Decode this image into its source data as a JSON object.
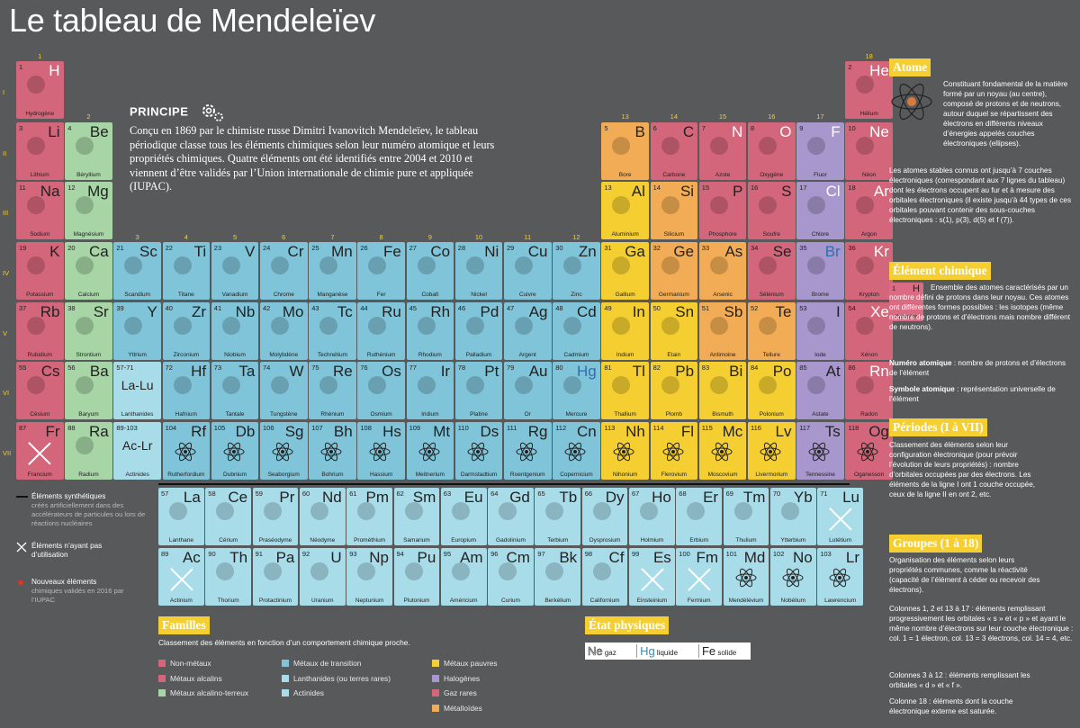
{
  "title": "Le tableau de Mendeleïev",
  "principe": {
    "title": "PRINCIPE",
    "text": "Conçu en 1869 par le chimiste russe Dimitri Ivanovitch Mendeleïev, le tableau périodique classe tous les éléments chimiques selon leur numéro atomique et leurs propriétés chimiques. Quatre éléments ont été identifiés entre 2004 et 2010 et viennent d’être validés par l’Union internationale de chimie pure et appliquée (IUPAC)."
  },
  "periods": [
    "I",
    "II",
    "III",
    "IV",
    "V",
    "VI",
    "VII"
  ],
  "groups": [
    "1",
    "2",
    "3",
    "4",
    "5",
    "6",
    "7",
    "8",
    "9",
    "10",
    "11",
    "12",
    "13",
    "14",
    "15",
    "16",
    "17",
    "18"
  ],
  "elements": [
    {
      "n": "1",
      "s": "H",
      "name": "Hydrogène",
      "c": "c-nonmetal",
      "col": 0,
      "row": 0
    },
    {
      "n": "2",
      "s": "He",
      "name": "Hélium",
      "c": "c-noble",
      "col": 17,
      "row": 0
    },
    {
      "n": "3",
      "s": "Li",
      "name": "Lithium",
      "c": "c-alkali",
      "col": 0,
      "row": 1
    },
    {
      "n": "4",
      "s": "Be",
      "name": "Béryllium",
      "c": "c-alkaline",
      "col": 1,
      "row": 1
    },
    {
      "n": "5",
      "s": "B",
      "name": "Bore",
      "c": "c-metalloid",
      "col": 12,
      "row": 1
    },
    {
      "n": "6",
      "s": "C",
      "name": "Carbone",
      "c": "c-nonmetal",
      "col": 13,
      "row": 1
    },
    {
      "n": "7",
      "s": "N",
      "name": "Azote",
      "c": "c-nonmetal",
      "col": 14,
      "row": 1
    },
    {
      "n": "8",
      "s": "O",
      "name": "Oxygène",
      "c": "c-nonmetal",
      "col": 15,
      "row": 1
    },
    {
      "n": "9",
      "s": "F",
      "name": "Fluor",
      "c": "c-halogen",
      "col": 16,
      "row": 1
    },
    {
      "n": "10",
      "s": "Ne",
      "name": "Néon",
      "c": "c-noble",
      "col": 17,
      "row": 1
    },
    {
      "n": "11",
      "s": "Na",
      "name": "Sodium",
      "c": "c-alkali",
      "col": 0,
      "row": 2
    },
    {
      "n": "12",
      "s": "Mg",
      "name": "Magnésium",
      "c": "c-alkaline",
      "col": 1,
      "row": 2
    },
    {
      "n": "13",
      "s": "Al",
      "name": "Aluminium",
      "c": "c-poor",
      "col": 12,
      "row": 2
    },
    {
      "n": "14",
      "s": "Si",
      "name": "Silicium",
      "c": "c-metalloid",
      "col": 13,
      "row": 2
    },
    {
      "n": "15",
      "s": "P",
      "name": "Phosphore",
      "c": "c-nonmetal",
      "col": 14,
      "row": 2
    },
    {
      "n": "16",
      "s": "S",
      "name": "Soufre",
      "c": "c-nonmetal",
      "col": 15,
      "row": 2
    },
    {
      "n": "17",
      "s": "Cl",
      "name": "Chlore",
      "c": "c-halogen",
      "col": 16,
      "row": 2
    },
    {
      "n": "18",
      "s": "Ar",
      "name": "Argon",
      "c": "c-noble",
      "col": 17,
      "row": 2
    },
    {
      "n": "19",
      "s": "K",
      "name": "Potassium",
      "c": "c-alkali",
      "col": 0,
      "row": 3
    },
    {
      "n": "20",
      "s": "Ca",
      "name": "Calcium",
      "c": "c-alkaline",
      "col": 1,
      "row": 3
    },
    {
      "n": "21",
      "s": "Sc",
      "name": "Scandium",
      "c": "c-trans",
      "col": 2,
      "row": 3
    },
    {
      "n": "22",
      "s": "Ti",
      "name": "Titane",
      "c": "c-trans",
      "col": 3,
      "row": 3
    },
    {
      "n": "23",
      "s": "V",
      "name": "Vanadium",
      "c": "c-trans",
      "col": 4,
      "row": 3
    },
    {
      "n": "24",
      "s": "Cr",
      "name": "Chrome",
      "c": "c-trans",
      "col": 5,
      "row": 3
    },
    {
      "n": "25",
      "s": "Mn",
      "name": "Manganèse",
      "c": "c-trans",
      "col": 6,
      "row": 3
    },
    {
      "n": "26",
      "s": "Fe",
      "name": "Fer",
      "c": "c-trans",
      "col": 7,
      "row": 3
    },
    {
      "n": "27",
      "s": "Co",
      "name": "Cobalt",
      "c": "c-trans",
      "col": 8,
      "row": 3
    },
    {
      "n": "28",
      "s": "Ni",
      "name": "Nickel",
      "c": "c-trans",
      "col": 9,
      "row": 3
    },
    {
      "n": "29",
      "s": "Cu",
      "name": "Cuivre",
      "c": "c-trans",
      "col": 10,
      "row": 3
    },
    {
      "n": "30",
      "s": "Zn",
      "name": "Zinc",
      "c": "c-trans",
      "col": 11,
      "row": 3
    },
    {
      "n": "31",
      "s": "Ga",
      "name": "Gallium",
      "c": "c-poor",
      "col": 12,
      "row": 3
    },
    {
      "n": "32",
      "s": "Ge",
      "name": "Germanium",
      "c": "c-metalloid",
      "col": 13,
      "row": 3
    },
    {
      "n": "33",
      "s": "As",
      "name": "Arsenic",
      "c": "c-metalloid",
      "col": 14,
      "row": 3
    },
    {
      "n": "34",
      "s": "Se",
      "name": "Sélénium",
      "c": "c-nonmetal",
      "col": 15,
      "row": 3
    },
    {
      "n": "35",
      "s": "Br",
      "name": "Brome",
      "c": "c-halogen",
      "col": 16,
      "row": 3
    },
    {
      "n": "36",
      "s": "Kr",
      "name": "Krypton",
      "c": "c-noble",
      "col": 17,
      "row": 3
    },
    {
      "n": "37",
      "s": "Rb",
      "name": "Rubidium",
      "c": "c-alkali",
      "col": 0,
      "row": 4
    },
    {
      "n": "38",
      "s": "Sr",
      "name": "Strontium",
      "c": "c-alkaline",
      "col": 1,
      "row": 4
    },
    {
      "n": "39",
      "s": "Y",
      "name": "Yttrium",
      "c": "c-trans",
      "col": 2,
      "row": 4
    },
    {
      "n": "40",
      "s": "Zr",
      "name": "Zirconium",
      "c": "c-trans",
      "col": 3,
      "row": 4
    },
    {
      "n": "41",
      "s": "Nb",
      "name": "Niobium",
      "c": "c-trans",
      "col": 4,
      "row": 4
    },
    {
      "n": "42",
      "s": "Mo",
      "name": "Molybdène",
      "c": "c-trans",
      "col": 5,
      "row": 4
    },
    {
      "n": "43",
      "s": "Tc",
      "name": "Technétium",
      "c": "c-trans",
      "col": 6,
      "row": 4
    },
    {
      "n": "44",
      "s": "Ru",
      "name": "Ruthénium",
      "c": "c-trans",
      "col": 7,
      "row": 4
    },
    {
      "n": "45",
      "s": "Rh",
      "name": "Rhodium",
      "c": "c-trans",
      "col": 8,
      "row": 4
    },
    {
      "n": "46",
      "s": "Pd",
      "name": "Palladium",
      "c": "c-trans",
      "col": 9,
      "row": 4
    },
    {
      "n": "47",
      "s": "Ag",
      "name": "Argent",
      "c": "c-trans",
      "col": 10,
      "row": 4
    },
    {
      "n": "48",
      "s": "Cd",
      "name": "Cadmium",
      "c": "c-trans",
      "col": 11,
      "row": 4
    },
    {
      "n": "49",
      "s": "In",
      "name": "Indium",
      "c": "c-poor",
      "col": 12,
      "row": 4
    },
    {
      "n": "50",
      "s": "Sn",
      "name": "Étain",
      "c": "c-poor",
      "col": 13,
      "row": 4
    },
    {
      "n": "51",
      "s": "Sb",
      "name": "Antimoine",
      "c": "c-metalloid",
      "col": 14,
      "row": 4
    },
    {
      "n": "52",
      "s": "Te",
      "name": "Tellure",
      "c": "c-metalloid",
      "col": 15,
      "row": 4
    },
    {
      "n": "53",
      "s": "I",
      "name": "Iode",
      "c": "c-halogen",
      "col": 16,
      "row": 4
    },
    {
      "n": "54",
      "s": "Xe",
      "name": "Xénon",
      "c": "c-noble",
      "col": 17,
      "row": 4
    },
    {
      "n": "55",
      "s": "Cs",
      "name": "Césium",
      "c": "c-alkali",
      "col": 0,
      "row": 5
    },
    {
      "n": "56",
      "s": "Ba",
      "name": "Baryum",
      "c": "c-alkaline",
      "col": 1,
      "row": 5
    },
    {
      "n": "72",
      "s": "Hf",
      "name": "Hafnium",
      "c": "c-trans",
      "col": 3,
      "row": 5
    },
    {
      "n": "73",
      "s": "Ta",
      "name": "Tantale",
      "c": "c-trans",
      "col": 4,
      "row": 5
    },
    {
      "n": "74",
      "s": "W",
      "name": "Tungstène",
      "c": "c-trans",
      "col": 5,
      "row": 5
    },
    {
      "n": "75",
      "s": "Re",
      "name": "Rhénium",
      "c": "c-trans",
      "col": 6,
      "row": 5
    },
    {
      "n": "76",
      "s": "Os",
      "name": "Osmium",
      "c": "c-trans",
      "col": 7,
      "row": 5
    },
    {
      "n": "77",
      "s": "Ir",
      "name": "Iridium",
      "c": "c-trans",
      "col": 8,
      "row": 5
    },
    {
      "n": "78",
      "s": "Pt",
      "name": "Platine",
      "c": "c-trans",
      "col": 9,
      "row": 5
    },
    {
      "n": "79",
      "s": "Au",
      "name": "Or",
      "c": "c-trans",
      "col": 10,
      "row": 5
    },
    {
      "n": "80",
      "s": "Hg",
      "name": "Mercure",
      "c": "c-trans",
      "col": 11,
      "row": 5
    },
    {
      "n": "81",
      "s": "Tl",
      "name": "Thallium",
      "c": "c-poor",
      "col": 12,
      "row": 5
    },
    {
      "n": "82",
      "s": "Pb",
      "name": "Plomb",
      "c": "c-poor",
      "col": 13,
      "row": 5
    },
    {
      "n": "83",
      "s": "Bi",
      "name": "Bismuth",
      "c": "c-poor",
      "col": 14,
      "row": 5
    },
    {
      "n": "84",
      "s": "Po",
      "name": "Polonium",
      "c": "c-poor",
      "col": 15,
      "row": 5
    },
    {
      "n": "85",
      "s": "At",
      "name": "Astate",
      "c": "c-halogen",
      "col": 16,
      "row": 5
    },
    {
      "n": "86",
      "s": "Rn",
      "name": "Radon",
      "c": "c-noble",
      "col": 17,
      "row": 5
    },
    {
      "n": "87",
      "s": "Fr",
      "name": "Francium",
      "c": "c-alkali",
      "col": 0,
      "row": 6,
      "x": true
    },
    {
      "n": "88",
      "s": "Ra",
      "name": "Radium",
      "c": "c-alkaline",
      "col": 1,
      "row": 6
    },
    {
      "n": "104",
      "s": "Rf",
      "name": "Rutherfordium",
      "c": "c-trans",
      "col": 3,
      "row": 6,
      "a": true
    },
    {
      "n": "105",
      "s": "Db",
      "name": "Dubnium",
      "c": "c-trans",
      "col": 4,
      "row": 6,
      "a": true
    },
    {
      "n": "106",
      "s": "Sg",
      "name": "Seaborgium",
      "c": "c-trans",
      "col": 5,
      "row": 6,
      "a": true
    },
    {
      "n": "107",
      "s": "Bh",
      "name": "Bohrium",
      "c": "c-trans",
      "col": 6,
      "row": 6,
      "a": true
    },
    {
      "n": "108",
      "s": "Hs",
      "name": "Hassium",
      "c": "c-trans",
      "col": 7,
      "row": 6,
      "a": true
    },
    {
      "n": "109",
      "s": "Mt",
      "name": "Meitnerium",
      "c": "c-trans",
      "col": 8,
      "row": 6,
      "a": true
    },
    {
      "n": "110",
      "s": "Ds",
      "name": "Darmstadtium",
      "c": "c-trans",
      "col": 9,
      "row": 6,
      "a": true
    },
    {
      "n": "111",
      "s": "Rg",
      "name": "Roentgenium",
      "c": "c-trans",
      "col": 10,
      "row": 6,
      "a": true
    },
    {
      "n": "112",
      "s": "Cn",
      "name": "Copernicium",
      "c": "c-trans",
      "col": 11,
      "row": 6,
      "a": true
    },
    {
      "n": "113",
      "s": "Nh",
      "name": "Nihonium",
      "c": "c-poor",
      "col": 12,
      "row": 6,
      "a": true,
      "star": true
    },
    {
      "n": "114",
      "s": "Fl",
      "name": "Flerovium",
      "c": "c-poor",
      "col": 13,
      "row": 6,
      "a": true
    },
    {
      "n": "115",
      "s": "Mc",
      "name": "Moscovium",
      "c": "c-poor",
      "col": 14,
      "row": 6,
      "a": true,
      "star": true
    },
    {
      "n": "116",
      "s": "Lv",
      "name": "Livermorium",
      "c": "c-poor",
      "col": 15,
      "row": 6,
      "a": true
    },
    {
      "n": "117",
      "s": "Ts",
      "name": "Tennessine",
      "c": "c-halogen",
      "col": 16,
      "row": 6,
      "a": true,
      "star": true
    },
    {
      "n": "118",
      "s": "Og",
      "name": "Oganesson",
      "c": "c-noble",
      "col": 17,
      "row": 6,
      "a": true,
      "star": true
    }
  ],
  "placeholders": [
    {
      "n": "57-71",
      "s": "La-Lu",
      "name": "Lanthanides",
      "col": 2,
      "row": 5
    },
    {
      "n": "89-103",
      "s": "Ac-Lr",
      "name": "Actinides",
      "col": 2,
      "row": 6
    }
  ],
  "lanthanides": [
    {
      "n": "57",
      "s": "La",
      "name": "Lanthane"
    },
    {
      "n": "58",
      "s": "Ce",
      "name": "Cérium"
    },
    {
      "n": "59",
      "s": "Pr",
      "name": "Praséodyme"
    },
    {
      "n": "60",
      "s": "Nd",
      "name": "Néodyme"
    },
    {
      "n": "61",
      "s": "Pm",
      "name": "Prométhium"
    },
    {
      "n": "62",
      "s": "Sm",
      "name": "Samarium"
    },
    {
      "n": "63",
      "s": "Eu",
      "name": "Europium"
    },
    {
      "n": "64",
      "s": "Gd",
      "name": "Gadolinium"
    },
    {
      "n": "65",
      "s": "Tb",
      "name": "Terbium"
    },
    {
      "n": "66",
      "s": "Dy",
      "name": "Dysprosium"
    },
    {
      "n": "67",
      "s": "Ho",
      "name": "Holmium"
    },
    {
      "n": "68",
      "s": "Er",
      "name": "Erbium"
    },
    {
      "n": "69",
      "s": "Tm",
      "name": "Thulium"
    },
    {
      "n": "70",
      "s": "Yb",
      "name": "Ytterbium"
    },
    {
      "n": "71",
      "s": "Lu",
      "name": "Lutétium",
      "x": true
    }
  ],
  "actinides": [
    {
      "n": "89",
      "s": "Ac",
      "name": "Actinium",
      "x": true
    },
    {
      "n": "90",
      "s": "Th",
      "name": "Thorium"
    },
    {
      "n": "91",
      "s": "Pa",
      "name": "Protactinium"
    },
    {
      "n": "92",
      "s": "U",
      "name": "Uranium"
    },
    {
      "n": "93",
      "s": "Np",
      "name": "Neptunium"
    },
    {
      "n": "94",
      "s": "Pu",
      "name": "Plutonium"
    },
    {
      "n": "95",
      "s": "Am",
      "name": "Américium"
    },
    {
      "n": "96",
      "s": "Cm",
      "name": "Curium"
    },
    {
      "n": "97",
      "s": "Bk",
      "name": "Berkélium"
    },
    {
      "n": "98",
      "s": "Cf",
      "name": "Californium"
    },
    {
      "n": "99",
      "s": "Es",
      "name": "Einsteinium",
      "x": true
    },
    {
      "n": "100",
      "s": "Fm",
      "name": "Fermium",
      "x": true
    },
    {
      "n": "101",
      "s": "Md",
      "name": "Mendélévium",
      "a": true
    },
    {
      "n": "102",
      "s": "No",
      "name": "Nobélium",
      "a": true
    },
    {
      "n": "103",
      "s": "Lr",
      "name": "Lawrencium",
      "a": true
    }
  ],
  "left_legend": {
    "synthetic_title": "Éléments synthétiques",
    "synthetic_text": "créés artificiellement dans des accélérateurs de particules ou lors de réactions nucléaires",
    "unused": "Éléments n’ayant pas d’utilisation",
    "new_title": "Nouveaux éléments",
    "new_text": "chimiques validés en 2016 par l’IUPAC"
  },
  "familles": {
    "title": "Familles",
    "subtitle": "Classement des éléments en fonction d’un comportement chimique proche.",
    "items": [
      {
        "label": "Non-métaux",
        "color": "#d3667a"
      },
      {
        "label": "Métaux alcalins",
        "color": "#d3667a"
      },
      {
        "label": "Métaux alcalino-terreux",
        "color": "#a7d5a6"
      },
      {
        "label": "Métaux de transition",
        "color": "#7fc4d8"
      },
      {
        "label": "Lanthanides (ou terres rares)",
        "color": "#a9dce9"
      },
      {
        "label": "Actinides",
        "color": "#a9dce9"
      },
      {
        "label": "Métaux pauvres",
        "color": "#f5cf31"
      },
      {
        "label": "Halogènes",
        "color": "#a797cc"
      },
      {
        "label": "Gaz rares",
        "color": "#d3667a"
      },
      {
        "label": "Métalloïdes",
        "color": "#f2ac55"
      }
    ]
  },
  "etat": {
    "title": "État physiques",
    "gaz_sym": "Ne",
    "gaz": "gaz",
    "liq_sym": "Hg",
    "liq": "liquide",
    "sol_sym": "Fe",
    "sol": "solide"
  },
  "sidebar": {
    "atome_title": "Atome",
    "atome_p1": "Constituant fondamental de la matière formé par un noyau (au centre), composé de protons et de neutrons, autour duquel se répartissent des électrons en différents niveaux d’énergies appelés couches électroniques (ellipses).",
    "atome_p2": "Les atomes stables connus ont jusqu’à 7 couches électroniques (correspondant aux 7 lignes du tableau) dont les électrons occupent au fur et à mesure des orbitales électroniques (il existe jusqu’à 44 types de ces orbitales pouvant contenir des sous-couches électroniques : s(1), p(3), d(5) et f (7)).",
    "element_title": "Élément chimique",
    "element_p1": "Ensemble des atomes caractérisés par un nombre défini de protons dans leur noyau. Ces atomes ont différentes formes possibles : les isotopes (même nombre de protons et d’électrons mais nombre différent de neutrons).",
    "num_label": "Numéro atomique",
    "num_text": " : nombre de protons et d’électrons de l’élément",
    "sym_label": "Symbole atomique",
    "sym_text": " : représentation universelle de l’élément",
    "sample_n": "1",
    "sample_s": "H",
    "sample_name": "Hydrogène",
    "periodes_title": "Périodes (I à VII)",
    "periodes_p": "Classement des éléments selon leur configuration électronique (pour prévoir l’évolution de leurs propriétés) : nombre d’orbitales occupées par des électrons. Les éléments de la ligne I ont 1 couche occupée, ceux de la ligne II en ont 2, etc.",
    "groupes_title": "Groupes (1 à 18)",
    "groupes_p1": "Organisation des éléments selon leurs propriétés communes, comme la réactivité (capacité de l’élément à céder ou recevoir des électrons).",
    "groupes_p2": "Colonnes 1, 2 et 13 à 17 : éléments remplissant progressivement les orbitales « s » et « p » et ayant le même nombre d’électrons sur leur couche électronique : col. 1 = 1 électron, col. 13 = 3 électrons, col. 14 = 4, etc.",
    "groupes_p3": "Colonnes 3 à 12 : éléments remplissant les orbitales « d » et « f ».",
    "groupes_p4": "Colonne 18 : éléments dont la couche électronique externe est saturée."
  }
}
